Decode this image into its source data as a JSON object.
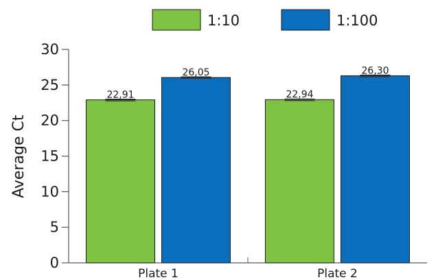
{
  "chart_data": {
    "type": "bar",
    "categories": [
      "Plate 1",
      "Plate 2"
    ],
    "series": [
      {
        "name": "1:10",
        "values": [
          22.91,
          22.94
        ],
        "labels": [
          "22,91",
          "22,94"
        ],
        "color": "#7dc242"
      },
      {
        "name": "1:100",
        "values": [
          26.05,
          26.3
        ],
        "labels": [
          "26,05",
          "26,30"
        ],
        "color": "#0a6ebd"
      }
    ],
    "ylabel": "Average Ct",
    "ylim": [
      0,
      30
    ],
    "yticks": [
      0,
      5,
      10,
      15,
      20,
      25,
      30
    ],
    "legend_position": "top-center",
    "grid": false,
    "error_bars": true
  }
}
